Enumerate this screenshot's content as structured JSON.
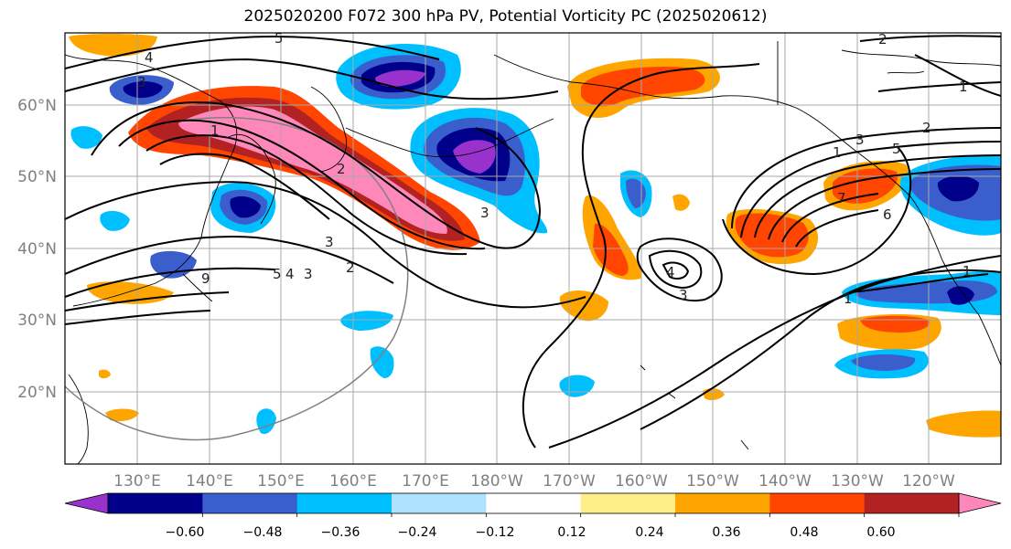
{
  "title": "2025020200 F072 300 hPa PV, Potential Vorticity PC (2025020612)",
  "map": {
    "projection": "lat-lon",
    "lon_labels": [
      "130°E",
      "140°E",
      "150°E",
      "160°E",
      "170°E",
      "180°W",
      "170°W",
      "160°W",
      "150°W",
      "140°W",
      "130°W",
      "120°W"
    ],
    "lat_labels": [
      "60°N",
      "50°N",
      "40°N",
      "30°N",
      "20°N"
    ],
    "gridlines": true
  },
  "colorbar": {
    "ticks": [
      "−0.60",
      "−0.48",
      "−0.36",
      "−0.24",
      "−0.12",
      "0.12",
      "0.24",
      "0.36",
      "0.48",
      "0.60"
    ],
    "colors": [
      "#9932cc",
      "#00008b",
      "#3a5fcd",
      "#00bfff",
      "#b0e2ff",
      "#ffffff",
      "#ffee88",
      "#ffa500",
      "#ff4500",
      "#b22222",
      "#ff88bb"
    ],
    "extend": "both"
  },
  "contours": {
    "labels": [
      "5",
      "4",
      "3",
      "1",
      "2",
      "3",
      "3",
      "2",
      "3",
      "4",
      "5",
      "9",
      "1",
      "3",
      "4",
      "3",
      "2",
      "5",
      "1",
      "7",
      "6",
      "2",
      "1",
      "1"
    ]
  }
}
